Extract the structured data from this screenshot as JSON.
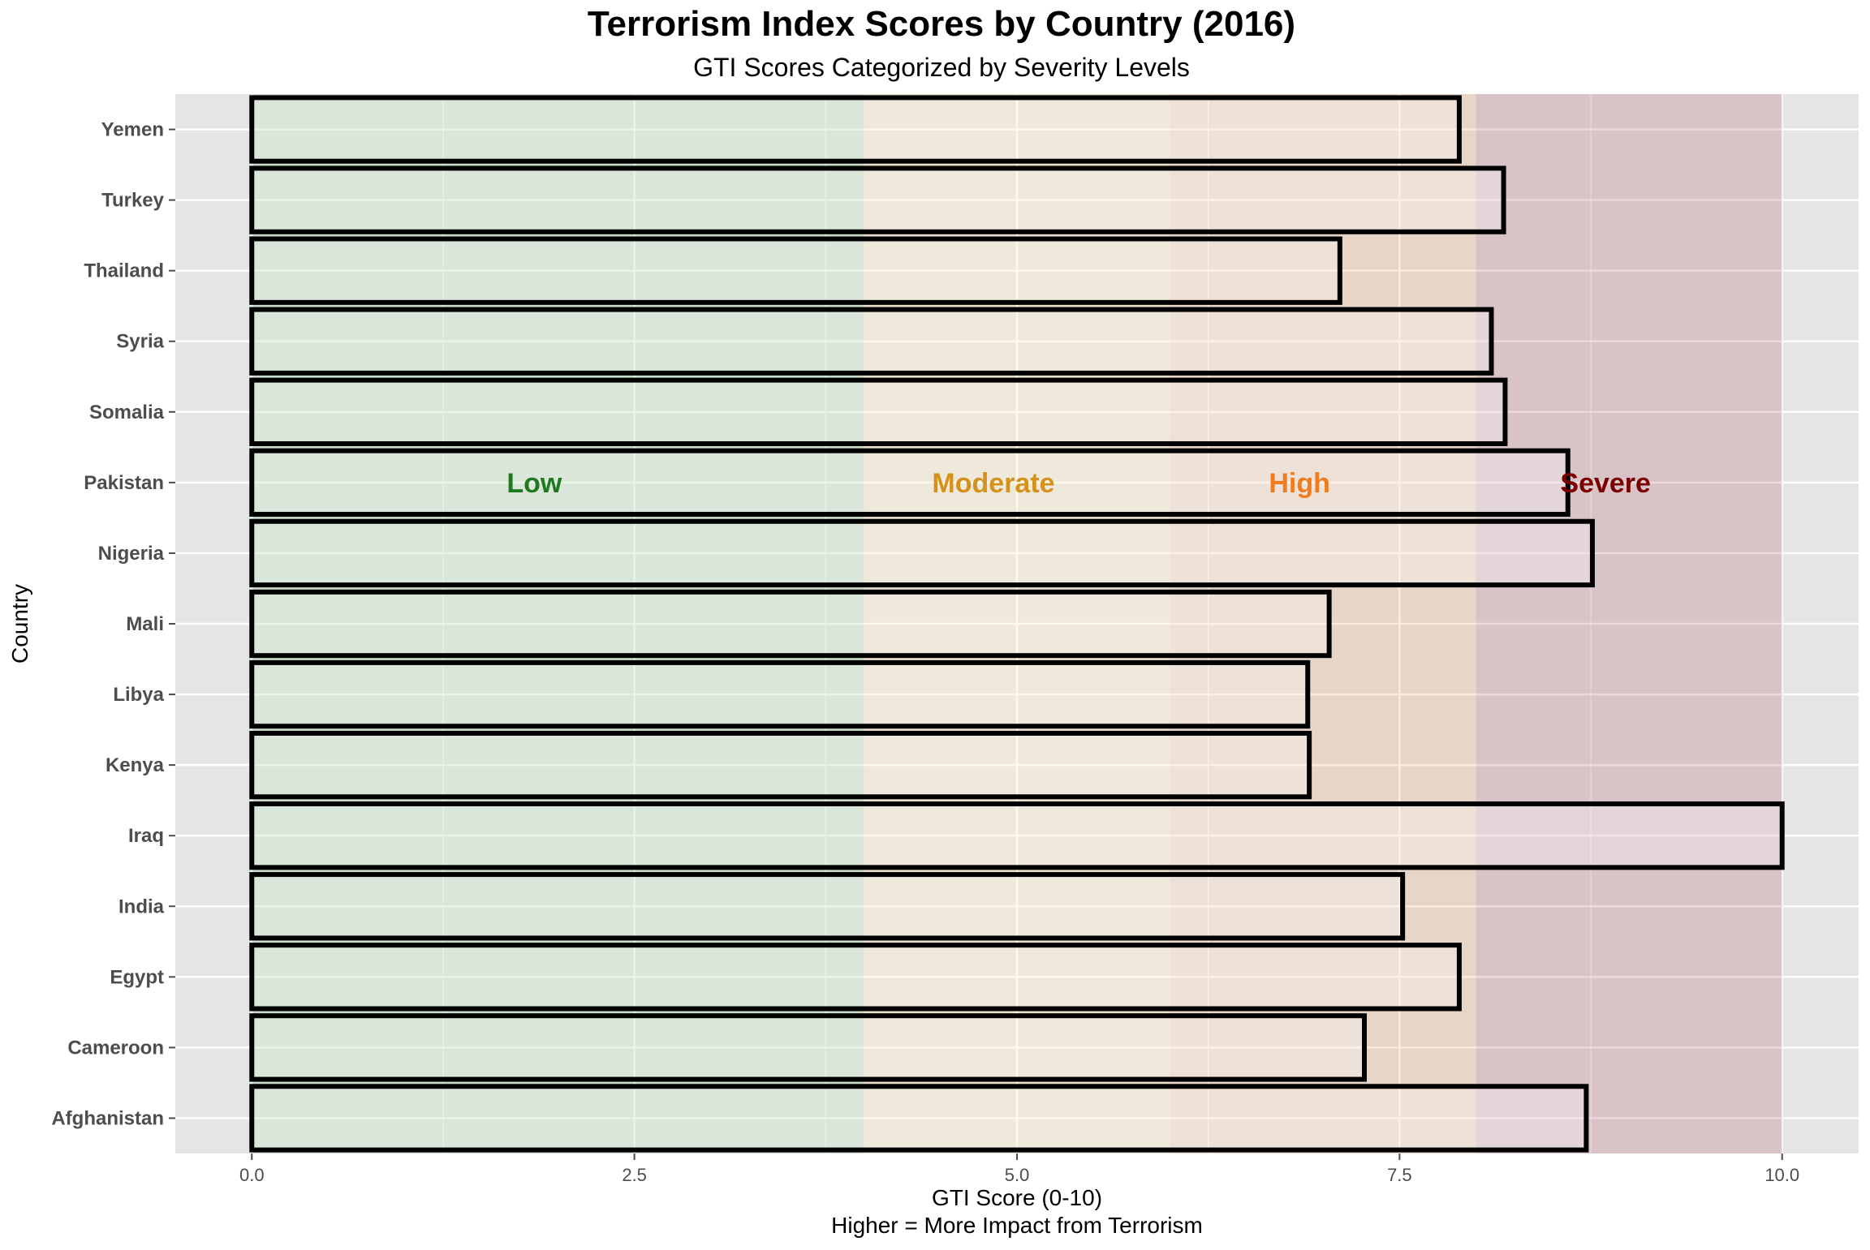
{
  "chart_data": {
    "type": "bar",
    "orientation": "horizontal",
    "title": "Terrorism Index Scores by Country (2016)",
    "subtitle": "GTI Scores Categorized by Severity Levels",
    "xlabel": "GTI Score (0-10)",
    "xlabel_sub": "Higher = More Impact from Terrorism",
    "ylabel": "Country",
    "xlim": [
      -0.5,
      10.5
    ],
    "x_ticks": [
      0,
      2.5,
      5,
      7.5,
      10
    ],
    "x_tick_labels": [
      "0.0",
      "2.5",
      "5.0",
      "7.5",
      "10.0"
    ],
    "grid": true,
    "categories": [
      "Afghanistan",
      "Cameroon",
      "Egypt",
      "India",
      "Iraq",
      "Kenya",
      "Libya",
      "Mali",
      "Nigeria",
      "Pakistan",
      "Somalia",
      "Syria",
      "Thailand",
      "Turkey",
      "Yemen"
    ],
    "values": [
      8.72,
      7.27,
      7.89,
      7.52,
      10.0,
      6.91,
      6.9,
      7.04,
      8.76,
      8.6,
      8.19,
      8.1,
      7.11,
      8.18,
      7.89
    ],
    "bands": [
      {
        "label": "Low",
        "from": 0,
        "to": 4,
        "color": "#2e9e2e",
        "label_color": "#1f7a1f"
      },
      {
        "label": "Moderate",
        "from": 4,
        "to": 6,
        "color": "#f5c542",
        "label_color": "#d4911c"
      },
      {
        "label": "High",
        "from": 6,
        "to": 8,
        "color": "#f07c1e",
        "label_color": "#f07c1e"
      },
      {
        "label": "Severe",
        "from": 8,
        "to": 10,
        "color": "#8b0a1a",
        "label_color": "#7a0000"
      }
    ],
    "colors": {
      "panel": "#e5e5e5",
      "gridline": "#ffffff",
      "bar_fill": "#ffffff",
      "bar_stroke": "#000000",
      "text": "#000000",
      "axis_text": "#4d4d4d"
    }
  }
}
